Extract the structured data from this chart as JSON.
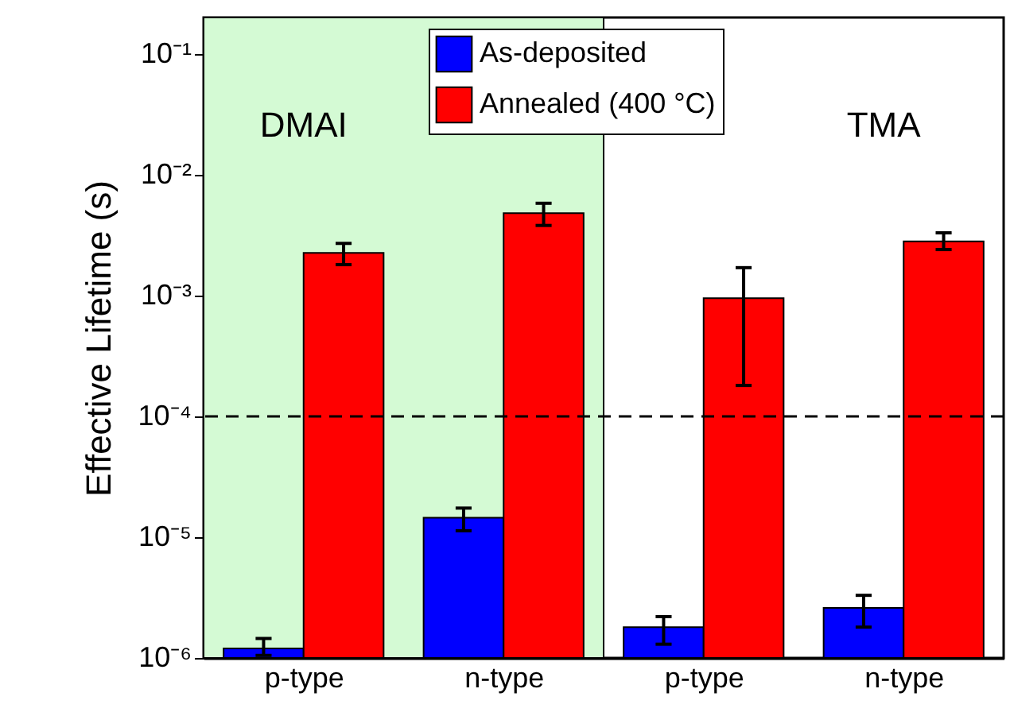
{
  "chart_data": {
    "type": "bar",
    "ylabel": "Effective Lifetime (s)",
    "categories": [
      "p-type",
      "n-type",
      "p-type",
      "n-type"
    ],
    "series": [
      {
        "name": "As-deposited",
        "color": "#0000ff",
        "values": [
          1.2e-06,
          1.45e-05,
          1.8e-06,
          2.6e-06
        ],
        "errors": [
          [
            1.05e-06,
            1.45e-06
          ],
          [
            1.13e-05,
            1.74e-05
          ],
          [
            1.3e-06,
            2.2e-06
          ],
          [
            1.8e-06,
            3.3e-06
          ]
        ]
      },
      {
        "name": "Annealed (400 °C)",
        "color": "#ff0000",
        "values": [
          0.00225,
          0.0048,
          0.00095,
          0.0028
        ],
        "errors": [
          [
            0.0018,
            0.0027
          ],
          [
            0.0038,
            0.0058
          ],
          [
            0.00018,
            0.0017
          ],
          [
            0.0024,
            0.0033
          ]
        ]
      }
    ],
    "log": "y",
    "ylim": [
      1e-06,
      0.2
    ],
    "yticks": [
      {
        "value": 1e-06,
        "label": "10⁻⁶"
      },
      {
        "value": 1e-05,
        "label": "10⁻⁵"
      },
      {
        "value": 0.0001,
        "label": "10⁻⁴"
      },
      {
        "value": 0.001,
        "label": "10⁻³"
      },
      {
        "value": 0.01,
        "label": "10⁻²"
      },
      {
        "value": 0.1,
        "label": "10⁻¹"
      }
    ],
    "ref_lines": [
      {
        "axis": "y",
        "value": 0.0001,
        "line_style": "dashed",
        "color": "#000000"
      }
    ],
    "bands": [
      {
        "axis": "x",
        "from": "p-type",
        "to": "n-type",
        "label": "DMAI",
        "color": "#d4fad4"
      }
    ],
    "annotations": [
      "TMA"
    ],
    "legend": "top",
    "grid": false
  }
}
